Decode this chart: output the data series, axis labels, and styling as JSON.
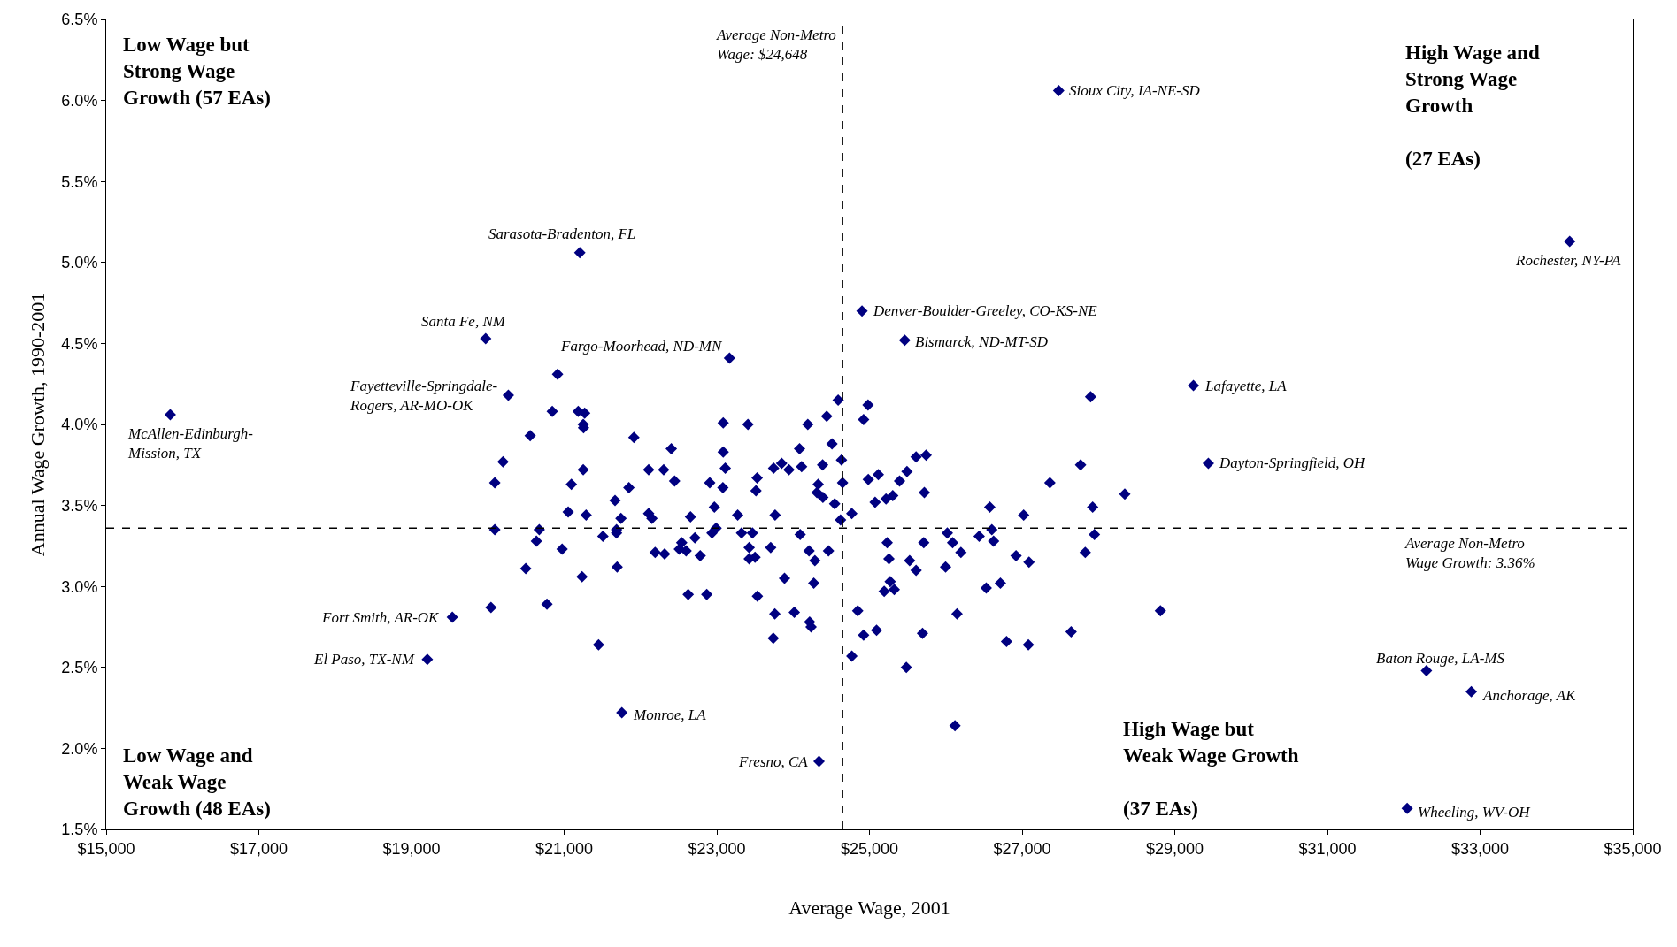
{
  "chart_data": {
    "type": "scatter",
    "xlabel": "Average Wage, 2001",
    "ylabel": "Annual Wage Growth, 1990-2001",
    "marker": "diamond",
    "grid": false,
    "xlim": [
      15000,
      35000
    ],
    "ylim": [
      1.5,
      6.5
    ],
    "xticks": [
      {
        "value": 15000,
        "label": "$15,000"
      },
      {
        "value": 17000,
        "label": "$17,000"
      },
      {
        "value": 19000,
        "label": "$19,000"
      },
      {
        "value": 21000,
        "label": "$21,000"
      },
      {
        "value": 23000,
        "label": "$23,000"
      },
      {
        "value": 25000,
        "label": "$25,000"
      },
      {
        "value": 27000,
        "label": "$27,000"
      },
      {
        "value": 29000,
        "label": "$29,000"
      },
      {
        "value": 31000,
        "label": "$31,000"
      },
      {
        "value": 33000,
        "label": "$33,000"
      },
      {
        "value": 35000,
        "label": "$35,000"
      }
    ],
    "yticks": [
      {
        "value": 1.5,
        "label": "1.5%"
      },
      {
        "value": 2.0,
        "label": "2.0%"
      },
      {
        "value": 2.5,
        "label": "2.5%"
      },
      {
        "value": 3.0,
        "label": "3.0%"
      },
      {
        "value": 3.5,
        "label": "3.5%"
      },
      {
        "value": 4.0,
        "label": "4.0%"
      },
      {
        "value": 4.5,
        "label": "4.5%"
      },
      {
        "value": 5.0,
        "label": "5.0%"
      },
      {
        "value": 5.5,
        "label": "5.5%"
      },
      {
        "value": 6.0,
        "label": "6.0%"
      },
      {
        "value": 6.5,
        "label": "6.5%"
      }
    ],
    "series": [
      {
        "color": "#000080",
        "x": [
          15840,
          19972,
          21205,
          27479,
          34174,
          24902,
          25462,
          29244,
          29440,
          32297,
          32885,
          32045,
          23166,
          20914,
          20269,
          20844,
          21184,
          21269,
          21250,
          21254,
          20555,
          21914,
          23084,
          23408,
          24590,
          24192,
          24440,
          22404,
          23084,
          24084,
          24509,
          20199,
          21250,
          22107,
          22304,
          23111,
          23744,
          23849,
          23945,
          24111,
          24386,
          24633,
          20091,
          21095,
          22447,
          22907,
          23080,
          23528,
          23513,
          24648,
          24328,
          24312,
          24390,
          21848,
          21667,
          24544,
          22968,
          21053,
          21288,
          21744,
          22107,
          22150,
          22655,
          23273,
          23764,
          24621,
          24768,
          20091,
          20674,
          20636,
          21508,
          21686,
          21686,
          22937,
          22991,
          23324,
          23467,
          24092,
          22713,
          22540,
          20973,
          22192,
          22316,
          22509,
          22598,
          22783,
          23424,
          23424,
          23501,
          23706,
          24208,
          24285,
          24463,
          20497,
          21234,
          21694,
          23887,
          24270,
          22625,
          22868,
          23532,
          23760,
          24015,
          24216,
          24235,
          23740,
          20775,
          20041,
          19535,
          19207,
          21451,
          21756,
          24339,
          24981,
          24923,
          25611,
          25742,
          24985,
          25116,
          25394,
          25491,
          25074,
          25217,
          25305,
          25719,
          26576,
          27020,
          27364,
          27766,
          27897,
          28345,
          27924,
          27947,
          27827,
          28812,
          25232,
          25711,
          26020,
          26089,
          26198,
          26437,
          26603,
          26626,
          26920,
          27090,
          25255,
          25526,
          25611,
          25997,
          25271,
          25193,
          25325,
          26530,
          26715,
          24846,
          26147,
          25093,
          24923,
          25695,
          26796,
          27082,
          27642,
          24769,
          25483,
          26120
        ],
        "values": [
          4.06,
          4.53,
          5.06,
          6.06,
          5.13,
          4.7,
          4.52,
          4.24,
          3.76,
          2.48,
          2.35,
          1.63,
          4.41,
          4.31,
          4.18,
          4.08,
          4.08,
          4.07,
          4.0,
          3.98,
          3.93,
          3.92,
          4.01,
          4.0,
          4.15,
          4.0,
          4.05,
          3.85,
          3.83,
          3.85,
          3.88,
          3.77,
          3.72,
          3.72,
          3.72,
          3.73,
          3.73,
          3.76,
          3.72,
          3.74,
          3.75,
          3.78,
          3.64,
          3.63,
          3.65,
          3.64,
          3.61,
          3.67,
          3.59,
          3.64,
          3.63,
          3.58,
          3.55,
          3.61,
          3.53,
          3.51,
          3.49,
          3.46,
          3.44,
          3.42,
          3.45,
          3.42,
          3.43,
          3.44,
          3.44,
          3.41,
          3.45,
          3.35,
          3.35,
          3.28,
          3.31,
          3.35,
          3.33,
          3.33,
          3.36,
          3.33,
          3.33,
          3.32,
          3.3,
          3.27,
          3.23,
          3.21,
          3.2,
          3.23,
          3.22,
          3.19,
          3.24,
          3.17,
          3.18,
          3.24,
          3.22,
          3.16,
          3.22,
          3.11,
          3.06,
          3.12,
          3.05,
          3.02,
          2.95,
          2.95,
          2.94,
          2.83,
          2.84,
          2.78,
          2.75,
          2.68,
          2.89,
          2.87,
          2.81,
          2.55,
          2.64,
          2.22,
          1.92,
          4.12,
          4.03,
          3.8,
          3.81,
          3.66,
          3.69,
          3.65,
          3.71,
          3.52,
          3.54,
          3.56,
          3.58,
          3.49,
          3.44,
          3.64,
          3.75,
          4.17,
          3.57,
          3.49,
          3.32,
          3.21,
          2.85,
          3.27,
          3.27,
          3.33,
          3.27,
          3.21,
          3.31,
          3.35,
          3.28,
          3.19,
          3.15,
          3.17,
          3.16,
          3.1,
          3.12,
          3.03,
          2.97,
          2.98,
          2.99,
          3.02,
          2.85,
          2.83,
          2.73,
          2.7,
          2.71,
          2.66,
          2.64,
          2.72,
          2.57,
          2.5,
          2.14
        ]
      }
    ],
    "ref_lines": [
      {
        "axis": "x",
        "value": 24648,
        "label": "Average Non-Metro\nWage: $24,648",
        "color": "#000000",
        "line_style": "dashed"
      },
      {
        "axis": "y",
        "value": 3.36,
        "label": "Average Non-Metro\nWage Growth: 3.36%",
        "color": "#000000",
        "line_style": "dashed"
      }
    ],
    "annotations": [
      {
        "text": "Sioux City, IA-NE-SD",
        "x": 27479,
        "y": 6.06
      },
      {
        "text": "Rochester, NY-PA",
        "x": 34174,
        "y": 5.13
      },
      {
        "text": "Sarasota-Bradenton, FL",
        "x": 21205,
        "y": 5.06
      },
      {
        "text": "Santa Fe, NM",
        "x": 19972,
        "y": 4.53
      },
      {
        "text": "Denver-Boulder-Greeley, CO-KS-NE",
        "x": 24902,
        "y": 4.7
      },
      {
        "text": "Fargo-Moorhead, ND-MN",
        "x": 23166,
        "y": 4.41
      },
      {
        "text": "Bismarck, ND-MT-SD",
        "x": 25462,
        "y": 4.52
      },
      {
        "text": "Fayetteville-Springdale-\nRogers, AR-MO-OK",
        "x": 20269,
        "y": 4.18
      },
      {
        "text": "McAllen-Edinburgh-\nMission, TX",
        "x": 15840,
        "y": 4.06
      },
      {
        "text": "Lafayette, LA",
        "x": 29244,
        "y": 4.24
      },
      {
        "text": "Dayton-Springfield, OH",
        "x": 29440,
        "y": 3.76
      },
      {
        "text": "Fort Smith, AR-OK",
        "x": 19535,
        "y": 2.81
      },
      {
        "text": "El Paso, TX-NM",
        "x": 19207,
        "y": 2.55
      },
      {
        "text": "Monroe, LA",
        "x": 21756,
        "y": 2.22
      },
      {
        "text": "Fresno, CA",
        "x": 24339,
        "y": 1.92
      },
      {
        "text": "Baton Rouge, LA-MS",
        "x": 32297,
        "y": 2.48
      },
      {
        "text": "Anchorage, AK",
        "x": 32885,
        "y": 2.35
      },
      {
        "text": "Wheeling, WV-OH",
        "x": 32045,
        "y": 1.63
      },
      "Low Wage but\nStrong Wage\nGrowth (57 EAs)",
      "High Wage and\nStrong Wage\nGrowth\n\n(27 EAs)",
      "Low Wage and\nWeak Wage\nGrowth (48 EAs)",
      "High Wage but\nWeak Wage Growth\n\n(37 EAs)"
    ]
  }
}
